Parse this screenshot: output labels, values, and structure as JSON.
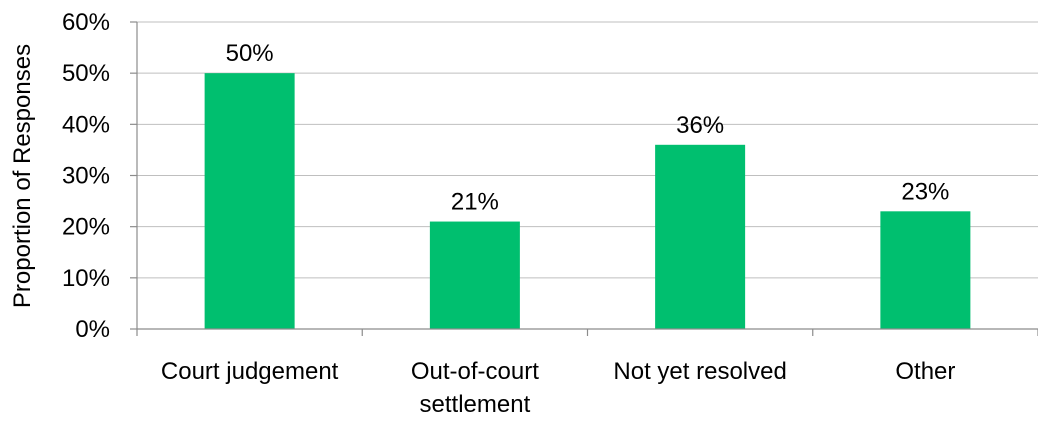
{
  "chart_data": {
    "type": "bar",
    "categories": [
      [
        "Court judgement"
      ],
      [
        "Out-of-",
        "court",
        "settlement"
      ],
      [
        "Not yet resolved"
      ],
      [
        "Other"
      ]
    ],
    "values": [
      50,
      21,
      36,
      23
    ],
    "value_labels": [
      "50%",
      "21%",
      "36%",
      "23%"
    ],
    "ylabel": "Proportion of Responses",
    "xlabel": "",
    "ylim": [
      0,
      60
    ],
    "yticks": [
      0,
      10,
      20,
      30,
      40,
      50,
      60
    ],
    "ytick_labels": [
      "0%",
      "10%",
      "20%",
      "30%",
      "40%",
      "50%",
      "60%"
    ],
    "grid": true,
    "legend": "none",
    "bar_color": "#00bf6f"
  }
}
